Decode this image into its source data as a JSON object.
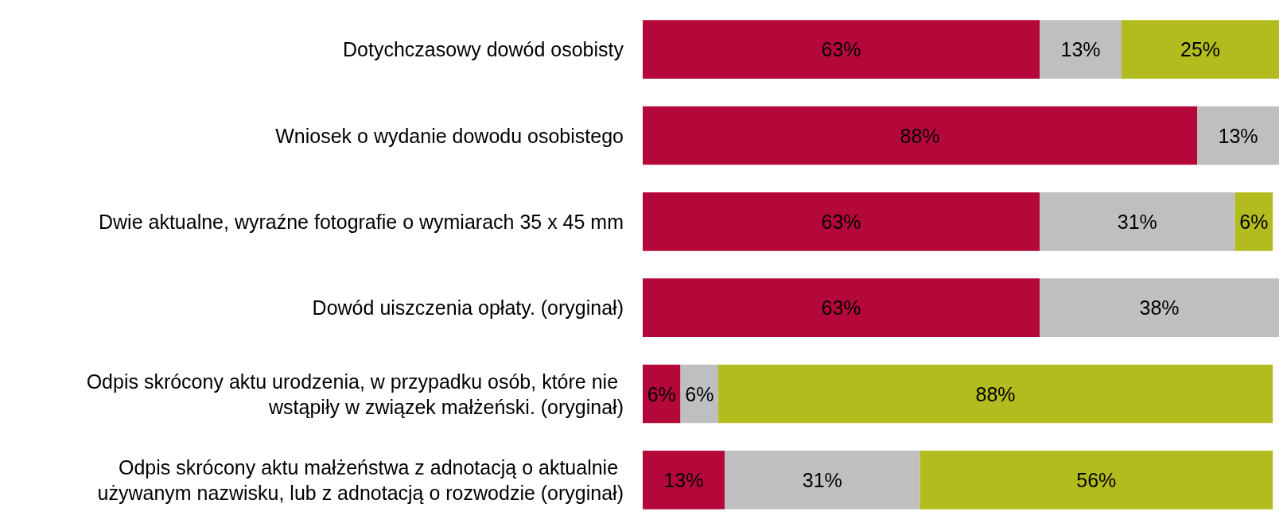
{
  "chart_data": {
    "type": "bar",
    "orientation": "horizontal",
    "stacked": true,
    "data_labels": true,
    "categories": [
      "Dotychczasowy dowód osobisty",
      "Wniosek o wydanie dowodu osobistego",
      "Dwie aktualne, wyraźne fotografie o wymiarach 35 x 45 mm",
      "Dowód uiszczenia opłaty. (oryginał)",
      "Odpis skrócony aktu urodzenia, w przypadku osób, które nie wstąpiły w związek małżeński. (oryginał)",
      "Odpis skrócony aktu małżeństwa z adnotacją o aktualnie używanym nazwisku, lub z adnotacją o rozwodzie (oryginał)"
    ],
    "series": [
      {
        "color": "#b5083a",
        "values": [
          63,
          88,
          63,
          63,
          6,
          13
        ],
        "value_labels": [
          "63%",
          "88%",
          "63%",
          "63%",
          "6%",
          "13%"
        ]
      },
      {
        "color": "#bfbfbf",
        "values": [
          13,
          13,
          31,
          38,
          6,
          31
        ],
        "value_labels": [
          "13%",
          "13%",
          "31%",
          "38%",
          "6%",
          "31%"
        ]
      },
      {
        "color": "#b3bc1e",
        "values": [
          25,
          null,
          6,
          null,
          88,
          56
        ],
        "value_labels": [
          "25%",
          null,
          "6%",
          null,
          "88%",
          "56%"
        ]
      }
    ]
  }
}
